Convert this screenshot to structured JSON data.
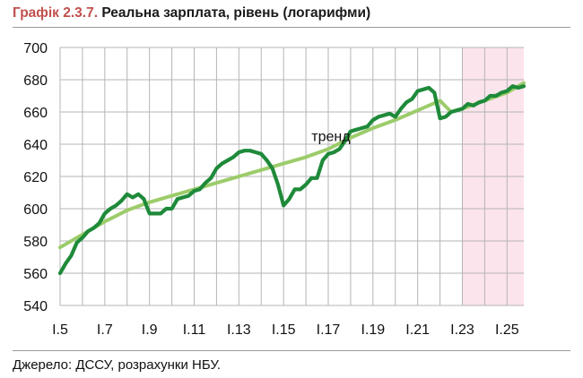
{
  "title_prefix": "Графік 2.3.7.",
  "title_text": "Реальна зарплата, рівень (логарифми)",
  "source": "Джерело: ДССУ, розрахунки НБУ.",
  "colors": {
    "actual": "#1e8a3a",
    "trend": "#9ccc6a",
    "forecast_shade": "#fce4ec",
    "title_accent": "#c0504d",
    "grid": "#b5b5b5"
  },
  "chart_data": {
    "type": "line",
    "title": "Реальна зарплата, рівень (логарифми)",
    "xlabel": "",
    "ylabel": "",
    "x_ticks": [
      "I.5",
      "I.7",
      "I.9",
      "I.11",
      "I.13",
      "I.15",
      "I.17",
      "I.19",
      "I.21",
      "I.23",
      "I.25"
    ],
    "xlim": [
      2005,
      2025.75
    ],
    "ylim": [
      540,
      700
    ],
    "y_ticks": [
      540,
      560,
      580,
      600,
      620,
      640,
      660,
      680,
      700
    ],
    "grid": true,
    "forecast_region": [
      2023,
      2025.75
    ],
    "annotation": "тренд",
    "series": [
      {
        "name": "",
        "style": "actual",
        "x": [
          2005,
          2005.25,
          2005.5,
          2005.75,
          2006,
          2006.25,
          2006.5,
          2006.75,
          2007,
          2007.25,
          2007.5,
          2007.75,
          2008,
          2008.25,
          2008.5,
          2008.75,
          2009,
          2009.25,
          2009.5,
          2009.75,
          2010,
          2010.25,
          2010.5,
          2010.75,
          2011,
          2011.25,
          2011.5,
          2011.75,
          2012,
          2012.25,
          2012.5,
          2012.75,
          2013,
          2013.25,
          2013.5,
          2013.75,
          2014,
          2014.25,
          2014.5,
          2014.75,
          2015,
          2015.25,
          2015.5,
          2015.75,
          2016,
          2016.25,
          2016.5,
          2016.75,
          2017,
          2017.25,
          2017.5,
          2017.75,
          2018,
          2018.25,
          2018.5,
          2018.75,
          2019,
          2019.25,
          2019.5,
          2019.75,
          2020,
          2020.25,
          2020.5,
          2020.75,
          2021,
          2021.25,
          2021.5,
          2021.75,
          2022,
          2022.25,
          2022.5,
          2022.75,
          2023,
          2023.25,
          2023.5,
          2023.75,
          2024,
          2024.25,
          2024.5,
          2024.75,
          2025,
          2025.25,
          2025.5,
          2025.75
        ],
        "y": [
          560,
          566,
          571,
          579,
          582,
          586,
          588,
          591,
          597,
          600,
          602,
          605,
          609,
          607,
          609,
          606,
          597,
          597,
          597,
          600,
          600,
          606,
          607,
          608,
          611,
          612,
          616,
          619,
          625,
          628,
          630,
          632,
          635,
          636,
          636,
          635,
          634,
          630,
          625,
          615,
          602,
          606,
          612,
          612,
          615,
          619,
          619,
          630,
          634,
          635,
          637,
          642,
          648,
          649,
          650,
          651,
          655,
          657,
          658,
          659,
          657,
          662,
          666,
          668,
          673,
          674,
          675,
          672,
          656,
          657,
          660,
          661,
          662,
          665,
          664,
          666,
          667,
          670,
          670,
          672,
          673,
          676,
          675,
          676
        ]
      },
      {
        "name": "тренд",
        "style": "trend",
        "x": [
          2005,
          2006,
          2007,
          2008,
          2009,
          2010,
          2011,
          2012,
          2013,
          2014,
          2015,
          2016,
          2017,
          2018,
          2019,
          2020,
          2021,
          2022,
          2022.5,
          2023,
          2024,
          2025,
          2025.75
        ],
        "y": [
          576,
          584,
          592,
          599,
          604,
          608,
          612,
          616,
          620,
          624,
          628,
          632,
          637,
          644,
          650,
          655,
          661,
          667,
          660,
          662,
          667,
          672,
          678
        ]
      }
    ]
  }
}
